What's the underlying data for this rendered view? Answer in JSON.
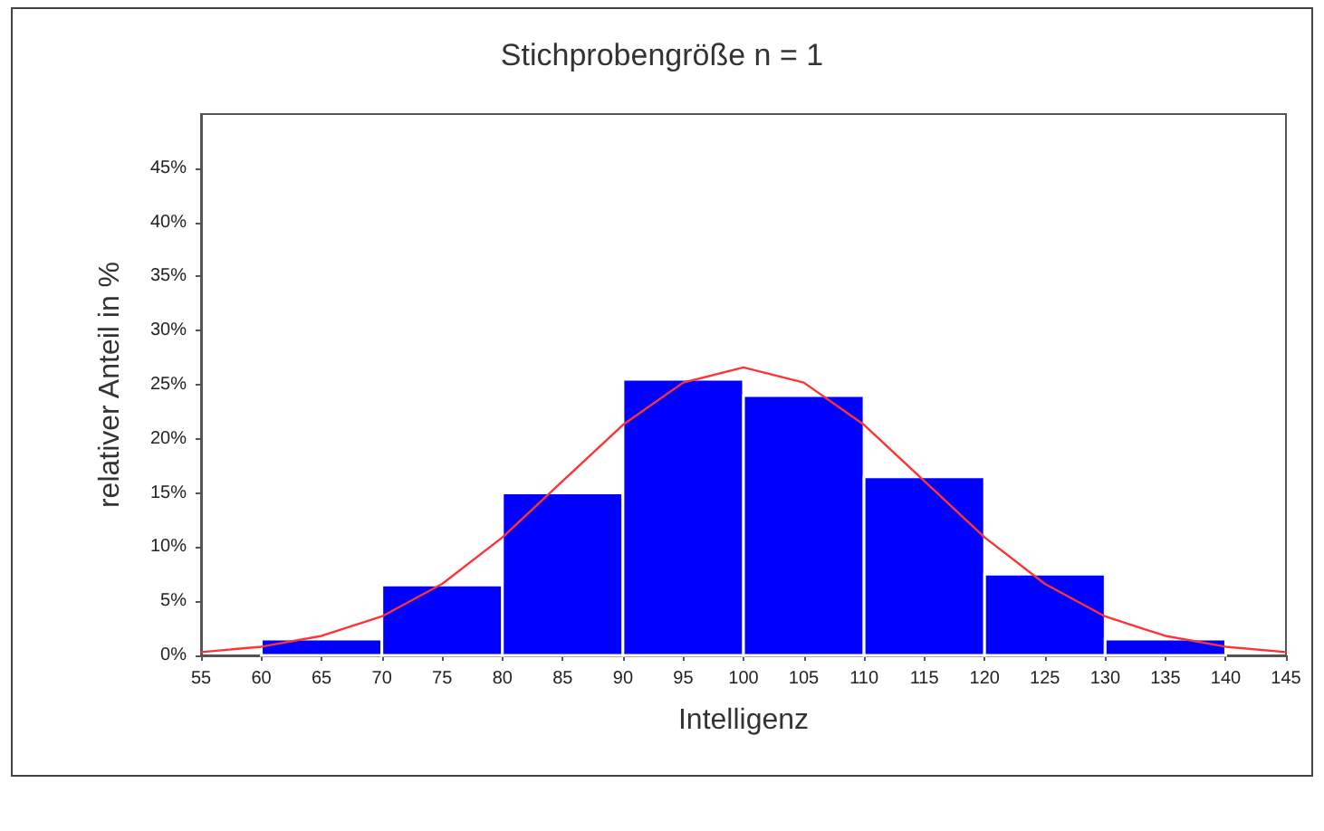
{
  "chart_data": {
    "type": "histogram",
    "title": "Stichprobengröße n = 1",
    "xlabel": "Intelligenz",
    "ylabel": "relativer Anteil in %",
    "bins": [
      60,
      70,
      80,
      90,
      100,
      110,
      120,
      130,
      140
    ],
    "values": [
      1.5,
      6.5,
      15,
      25.5,
      24,
      16.5,
      7.5,
      1.5
    ],
    "color": "#0000ff",
    "series": [
      {
        "type": "line",
        "color": "#ff3333",
        "x": [
          55,
          60,
          65,
          70,
          75,
          80,
          85,
          90,
          95,
          100,
          105,
          110,
          115,
          120,
          125,
          130,
          135,
          140,
          145
        ],
        "values": [
          0.3,
          0.8,
          1.8,
          3.6,
          6.6,
          10.9,
          16.1,
          21.3,
          25.2,
          26.6,
          25.2,
          21.3,
          16.1,
          10.9,
          6.6,
          3.6,
          1.8,
          0.8,
          0.3
        ]
      }
    ],
    "xlim": [
      55,
      145
    ],
    "xticks": [
      55,
      60,
      65,
      70,
      75,
      80,
      85,
      90,
      95,
      100,
      105,
      110,
      115,
      120,
      125,
      130,
      135,
      140,
      145
    ],
    "ylim": [
      0,
      50
    ],
    "yticks": [
      {
        "value": 0,
        "label": "0%"
      },
      {
        "value": 5,
        "label": "5%"
      },
      {
        "value": 10,
        "label": "10%"
      },
      {
        "value": 15,
        "label": "15%"
      },
      {
        "value": 20,
        "label": "20%"
      },
      {
        "value": 25,
        "label": "25%"
      },
      {
        "value": 30,
        "label": "30%"
      },
      {
        "value": 35,
        "label": "35%"
      },
      {
        "value": 40,
        "label": "40%"
      },
      {
        "value": 45,
        "label": "45%"
      }
    ],
    "grid": false,
    "marker": "none",
    "line_style": "solid"
  }
}
